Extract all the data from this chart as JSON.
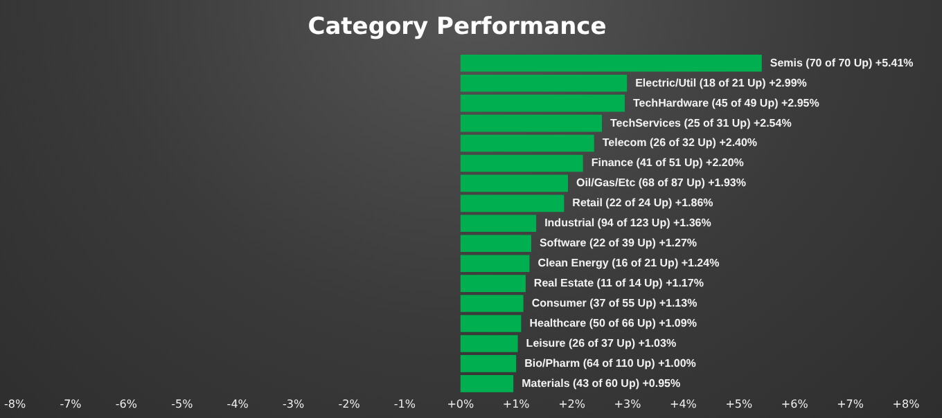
{
  "chart_data": {
    "type": "bar",
    "orientation": "horizontal",
    "title": "Category Performance",
    "categories": [
      "Semis (70 of 70 Up)",
      "Electric/Util (18 of 21 Up)",
      "TechHardware (45 of 49 Up)",
      "TechServices (25 of 31 Up)",
      "Telecom (26 of 32 Up)",
      "Finance (41 of 51 Up)",
      "Oil/Gas/Etc (68 of 87 Up)",
      "Retail (22 of 24 Up)",
      "Industrial (94 of 123 Up)",
      "Software (22 of 39 Up)",
      "Clean Energy (16 of 21 Up)",
      "Real Estate (11 of 14 Up)",
      "Consumer (37 of 55 Up)",
      "Healthcare (50 of 66 Up)",
      "Leisure (26 of 37 Up)",
      "Bio/Pharm (64 of 110 Up)",
      "Materials (43 of 60 Up)"
    ],
    "values": [
      5.41,
      2.99,
      2.95,
      2.54,
      2.4,
      2.2,
      1.93,
      1.86,
      1.36,
      1.27,
      1.24,
      1.17,
      1.13,
      1.09,
      1.03,
      1.0,
      0.95
    ],
    "value_labels": [
      "+5.41%",
      "+2.99%",
      "+2.95%",
      "+2.54%",
      "+2.40%",
      "+2.20%",
      "+1.93%",
      "+1.86%",
      "+1.36%",
      "+1.27%",
      "+1.24%",
      "+1.17%",
      "+1.13%",
      "+1.09%",
      "+1.03%",
      "+1.00%",
      "+0.95%"
    ],
    "color": "#00b050",
    "xlim": [
      -8,
      8
    ],
    "xticks": [
      {
        "value": -8,
        "label": "-8%"
      },
      {
        "value": -7,
        "label": "-7%"
      },
      {
        "value": -6,
        "label": "-6%"
      },
      {
        "value": -5,
        "label": "-5%"
      },
      {
        "value": -4,
        "label": "-4%"
      },
      {
        "value": -3,
        "label": "-3%"
      },
      {
        "value": -2,
        "label": "-2%"
      },
      {
        "value": -1,
        "label": "-1%"
      },
      {
        "value": 0,
        "label": "+0%"
      },
      {
        "value": 1,
        "label": "+1%"
      },
      {
        "value": 2,
        "label": "+2%"
      },
      {
        "value": 3,
        "label": "+3%"
      },
      {
        "value": 4,
        "label": "+4%"
      },
      {
        "value": 5,
        "label": "+5%"
      },
      {
        "value": 6,
        "label": "+6%"
      },
      {
        "value": 7,
        "label": "+7%"
      },
      {
        "value": 8,
        "label": "+8%"
      }
    ],
    "tick_labels": "x",
    "grid": false,
    "legend": false
  }
}
